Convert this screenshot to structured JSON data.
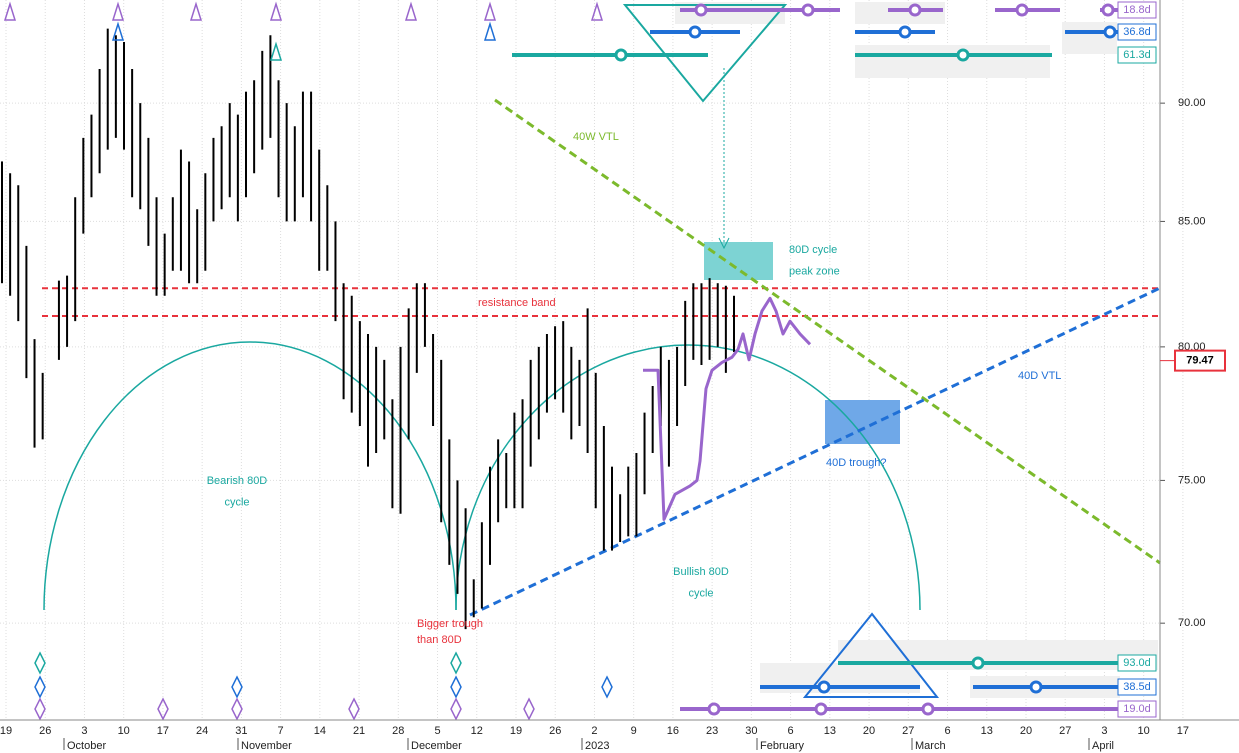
{
  "chart_data": {
    "type": "ohlc",
    "yscale": "log",
    "ylim": [
      66.8,
      94.6
    ],
    "yticks": [
      {
        "value": 70,
        "label": "70.00"
      },
      {
        "value": 75,
        "label": "75.00"
      },
      {
        "value": 80,
        "label": "80.00"
      },
      {
        "value": 85,
        "label": "85.00"
      },
      {
        "value": 90,
        "label": "90.00"
      }
    ],
    "x_labels": [
      "19",
      "26",
      "3",
      "10",
      "17",
      "24",
      "31",
      "7",
      "14",
      "21",
      "28",
      "5",
      "12",
      "19",
      "26",
      "2",
      "9",
      "16",
      "23",
      "30",
      "6",
      "13",
      "20",
      "27",
      "6",
      "13",
      "20",
      "27",
      "3",
      "10",
      "17"
    ],
    "months": [
      "October",
      "November",
      "December",
      "2023",
      "February",
      "March",
      "April"
    ],
    "color": "#000000",
    "high": [
      87.5,
      87,
      86.5,
      84,
      80.3,
      79,
      79.5,
      82.6,
      82.8,
      86,
      88.5,
      89.5,
      91.5,
      93.3,
      93,
      92.7,
      91.5,
      90,
      88.5,
      86,
      84.5,
      86,
      88,
      87.5,
      85.5,
      87,
      88.5,
      89,
      90,
      89.5,
      90.5,
      91,
      92.3,
      93,
      91,
      90,
      89,
      90.5,
      90.5,
      88,
      86.5,
      85,
      82.5,
      82,
      81,
      80.5,
      80,
      79.5,
      78,
      80,
      81.5,
      82.5,
      82.5,
      80.5,
      79.5,
      76.5,
      75,
      74,
      71.5,
      73.5,
      75.5,
      76.5,
      76,
      77.5,
      78,
      79.5,
      80,
      80.5,
      80.8,
      81,
      80,
      79.5,
      81.5,
      79,
      77,
      75.5,
      74.5,
      75.5,
      76,
      77.5,
      78.5,
      80,
      79.5,
      80,
      81.8,
      82.5,
      82.5,
      82.7,
      82.5,
      82.4,
      82
    ],
    "low": [
      82.5,
      82,
      81,
      78.8,
      76.2,
      76.5,
      79.5,
      79.5,
      80,
      81,
      84.5,
      86,
      87,
      88,
      88.5,
      88,
      86,
      85.5,
      84,
      82,
      82,
      83,
      83,
      82.5,
      82.5,
      83,
      85,
      85.5,
      86,
      85,
      86,
      87,
      88,
      88.5,
      86,
      85,
      85,
      86,
      85,
      83,
      83,
      81,
      78,
      77.5,
      77,
      75.5,
      76,
      76.5,
      74,
      73.8,
      76.5,
      79,
      80,
      77,
      73.5,
      72,
      71,
      69.8,
      70.2,
      70.5,
      72,
      73.5,
      74,
      74,
      74,
      75.5,
      76.5,
      77.5,
      78,
      77.5,
      76.5,
      77,
      76,
      74,
      72.5,
      72.5,
      72.8,
      73,
      73,
      74.5,
      76,
      77,
      75.5,
      77,
      78.5,
      79.5,
      79.3,
      79.5,
      80,
      79,
      79.8
    ],
    "projection": {
      "color": "#9966cc",
      "values": [
        79.1,
        79.1,
        73.6,
        74.5,
        74.8,
        75.0,
        75.7,
        78.4,
        79.1,
        79.4,
        79.6,
        79.9,
        80.5,
        79.5,
        80.5,
        81.4,
        81.9,
        81.4,
        80.5,
        81.0,
        80.5,
        80.1
      ]
    },
    "resistance_band": {
      "color": "#e8323c",
      "values": [
        81.2,
        82.3
      ],
      "label": "resistance band"
    },
    "last_price": 79.47,
    "annotations": {
      "vtl_40w": "40W VTL",
      "peak_zone": [
        "80D cycle",
        "peak zone"
      ],
      "vtl_40d": "40D VTL",
      "trough_40d": "40D trough?",
      "bearish": [
        "Bearish 80D",
        "cycle"
      ],
      "bullish": [
        "Bullish 80D",
        "cycle"
      ],
      "bigger_trough": [
        "Bigger trough",
        "than 80D"
      ]
    },
    "cycle_labels": {
      "top": [
        "18.8d",
        "36.8d",
        "61.3d"
      ],
      "bottom": [
        "93.0d",
        "38.5d",
        "19.0d"
      ]
    }
  }
}
